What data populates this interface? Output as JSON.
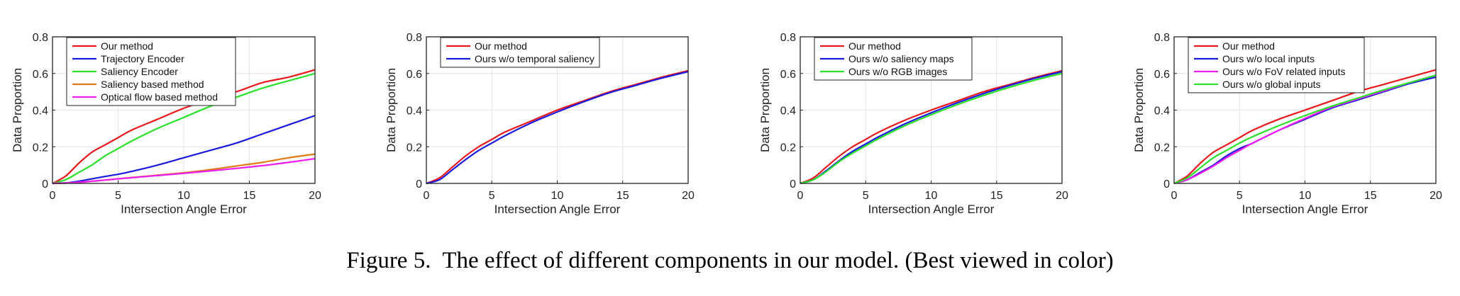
{
  "caption": "Figure 5.  The effect of different components in our model. (Best viewed in color)",
  "colors": {
    "red": "#e8171b",
    "blue": "#1a1adf",
    "green": "#2ae02a",
    "orange": "#df7a12",
    "magenta": "#ef1ef0"
  },
  "chart_data": [
    {
      "type": "line",
      "xlabel": "Intersection Angle Error",
      "ylabel": "Data Proportion",
      "xlim": [
        0,
        20
      ],
      "ylim": [
        0,
        0.8
      ],
      "xticks": [
        0,
        5,
        10,
        15,
        20
      ],
      "yticks": [
        0,
        0.2,
        0.4,
        0.6,
        0.8
      ],
      "xtick_labels": [
        "0",
        "5",
        "10",
        "15",
        "20"
      ],
      "ytick_labels": [
        "0",
        "0.2",
        "0.4",
        "0.6",
        "0.8"
      ],
      "grid": true,
      "legend": "top-left",
      "x": [
        0,
        1,
        2,
        3,
        4,
        5,
        6,
        8,
        10,
        12,
        14,
        16,
        18,
        20
      ],
      "series": [
        {
          "name": "Our method",
          "color": "#e8171b",
          "values": [
            0,
            0.04,
            0.11,
            0.17,
            0.21,
            0.25,
            0.29,
            0.35,
            0.41,
            0.46,
            0.5,
            0.55,
            0.58,
            0.62
          ]
        },
        {
          "name": "Trajectory Encoder",
          "color": "#1a1adf",
          "values": [
            0,
            0.003,
            0.012,
            0.025,
            0.038,
            0.05,
            0.065,
            0.1,
            0.14,
            0.18,
            0.22,
            0.27,
            0.32,
            0.37
          ]
        },
        {
          "name": "Saliency Encoder",
          "color": "#2ae02a",
          "values": [
            0,
            0.02,
            0.06,
            0.1,
            0.15,
            0.19,
            0.23,
            0.3,
            0.36,
            0.42,
            0.47,
            0.52,
            0.56,
            0.6
          ]
        },
        {
          "name": "Saliency based method",
          "color": "#df7a12",
          "values": [
            0,
            0.002,
            0.006,
            0.012,
            0.018,
            0.025,
            0.032,
            0.045,
            0.058,
            0.075,
            0.095,
            0.115,
            0.14,
            0.16
          ]
        },
        {
          "name": "Optical flow based method",
          "color": "#ef1ef0",
          "values": [
            0,
            0.002,
            0.006,
            0.012,
            0.018,
            0.025,
            0.031,
            0.043,
            0.055,
            0.068,
            0.082,
            0.097,
            0.115,
            0.135
          ]
        }
      ]
    },
    {
      "type": "line",
      "xlabel": "Intersection Angle Error",
      "ylabel": "Data Proportion",
      "xlim": [
        0,
        20
      ],
      "ylim": [
        0,
        0.8
      ],
      "xticks": [
        0,
        5,
        10,
        15,
        20
      ],
      "yticks": [
        0,
        0.2,
        0.4,
        0.6,
        0.8
      ],
      "xtick_labels": [
        "0",
        "5",
        "10",
        "15",
        "20"
      ],
      "ytick_labels": [
        "0",
        "0.2",
        "0.4",
        "0.6",
        "0.8"
      ],
      "grid": true,
      "legend": "top-left",
      "x": [
        0,
        1,
        2,
        3,
        4,
        5,
        6,
        8,
        10,
        12,
        14,
        16,
        18,
        20
      ],
      "series": [
        {
          "name": "Our method",
          "color": "#e8171b",
          "values": [
            0,
            0.03,
            0.09,
            0.15,
            0.2,
            0.24,
            0.28,
            0.34,
            0.4,
            0.45,
            0.5,
            0.54,
            0.58,
            0.615
          ]
        },
        {
          "name": "Ours w/o temporal saliency",
          "color": "#1a1adf",
          "values": [
            0,
            0.02,
            0.075,
            0.13,
            0.18,
            0.22,
            0.26,
            0.33,
            0.39,
            0.445,
            0.495,
            0.535,
            0.575,
            0.61
          ]
        }
      ]
    },
    {
      "type": "line",
      "xlabel": "Intersection Angle Error",
      "ylabel": "Data Proportion",
      "xlim": [
        0,
        20
      ],
      "ylim": [
        0,
        0.8
      ],
      "xticks": [
        0,
        5,
        10,
        15,
        20
      ],
      "yticks": [
        0,
        0.2,
        0.4,
        0.6,
        0.8
      ],
      "xtick_labels": [
        "0",
        "5",
        "10",
        "15",
        "20"
      ],
      "ytick_labels": [
        "0",
        "0.2",
        "0.4",
        "0.6",
        "0.8"
      ],
      "grid": true,
      "legend": "top-left",
      "x": [
        0,
        1,
        2,
        3,
        4,
        5,
        6,
        8,
        10,
        12,
        14,
        16,
        18,
        20
      ],
      "series": [
        {
          "name": "Our method",
          "color": "#e8171b",
          "values": [
            0,
            0.03,
            0.09,
            0.15,
            0.2,
            0.24,
            0.28,
            0.345,
            0.4,
            0.45,
            0.5,
            0.54,
            0.58,
            0.615
          ]
        },
        {
          "name": "Ours w/o saliency maps",
          "color": "#1a1adf",
          "values": [
            0,
            0.02,
            0.07,
            0.125,
            0.175,
            0.215,
            0.255,
            0.325,
            0.385,
            0.44,
            0.49,
            0.535,
            0.575,
            0.61
          ]
        },
        {
          "name": "Ours w/o RGB images",
          "color": "#2ae02a",
          "values": [
            0,
            0.02,
            0.065,
            0.12,
            0.165,
            0.205,
            0.245,
            0.315,
            0.375,
            0.43,
            0.48,
            0.525,
            0.565,
            0.6
          ]
        }
      ]
    },
    {
      "type": "line",
      "xlabel": "Intersection Angle Error",
      "ylabel": "Data Proportion",
      "xlim": [
        0,
        20
      ],
      "ylim": [
        0,
        0.8
      ],
      "xticks": [
        0,
        5,
        10,
        15,
        20
      ],
      "yticks": [
        0,
        0.2,
        0.4,
        0.6,
        0.8
      ],
      "xtick_labels": [
        "0",
        "5",
        "10",
        "15",
        "20"
      ],
      "ytick_labels": [
        "0",
        "0.2",
        "0.4",
        "0.6",
        "0.8"
      ],
      "grid": true,
      "legend": "top-left",
      "x": [
        0,
        1,
        2,
        3,
        4,
        5,
        6,
        8,
        10,
        12,
        14,
        16,
        18,
        20
      ],
      "series": [
        {
          "name": "Our method",
          "color": "#e8171b",
          "values": [
            0,
            0.04,
            0.11,
            0.17,
            0.21,
            0.25,
            0.29,
            0.35,
            0.4,
            0.45,
            0.5,
            0.54,
            0.58,
            0.62
          ]
        },
        {
          "name": "Ours w/o local inputs",
          "color": "#1a1adf",
          "values": [
            0,
            0.02,
            0.06,
            0.1,
            0.15,
            0.19,
            0.22,
            0.29,
            0.35,
            0.41,
            0.455,
            0.5,
            0.545,
            0.58
          ]
        },
        {
          "name": "Ours w/o FoV related inputs",
          "color": "#ef1ef0",
          "values": [
            0,
            0.02,
            0.055,
            0.095,
            0.14,
            0.18,
            0.22,
            0.29,
            0.355,
            0.415,
            0.46,
            0.505,
            0.55,
            0.59
          ]
        },
        {
          "name": "Ours w/o global inputs",
          "color": "#2ae02a",
          "values": [
            0,
            0.03,
            0.085,
            0.14,
            0.18,
            0.22,
            0.255,
            0.315,
            0.37,
            0.42,
            0.465,
            0.51,
            0.55,
            0.59
          ]
        }
      ]
    }
  ]
}
